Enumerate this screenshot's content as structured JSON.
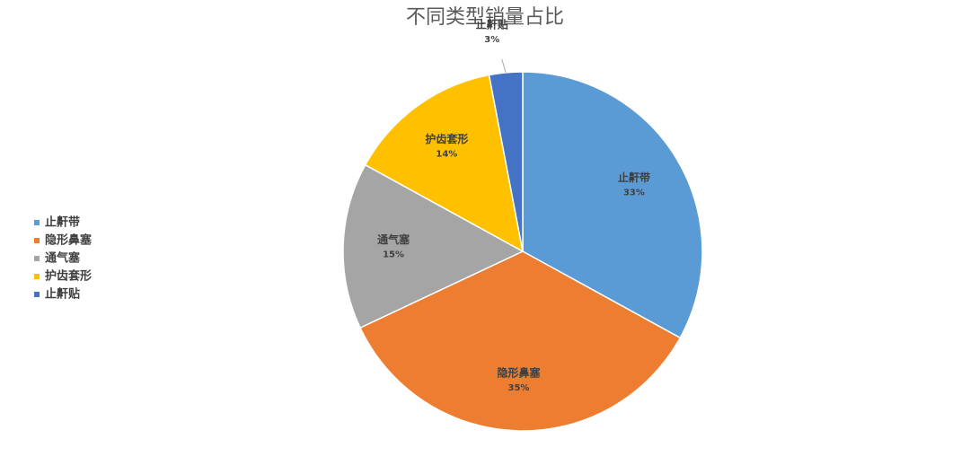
{
  "chart_data": {
    "type": "pie",
    "title": "不同类型销量占比",
    "categories": [
      "止鼾带",
      "隐形鼻塞",
      "通气塞",
      "护齿套形",
      "止鼾贴"
    ],
    "values": [
      33,
      35,
      15,
      14,
      3
    ],
    "value_labels": [
      "33%",
      "35%",
      "15%",
      "14%",
      "3%"
    ],
    "colors": [
      "#5b9bd5",
      "#ed7d31",
      "#a5a5a5",
      "#ffc000",
      "#4472c4"
    ],
    "legend": "left"
  }
}
